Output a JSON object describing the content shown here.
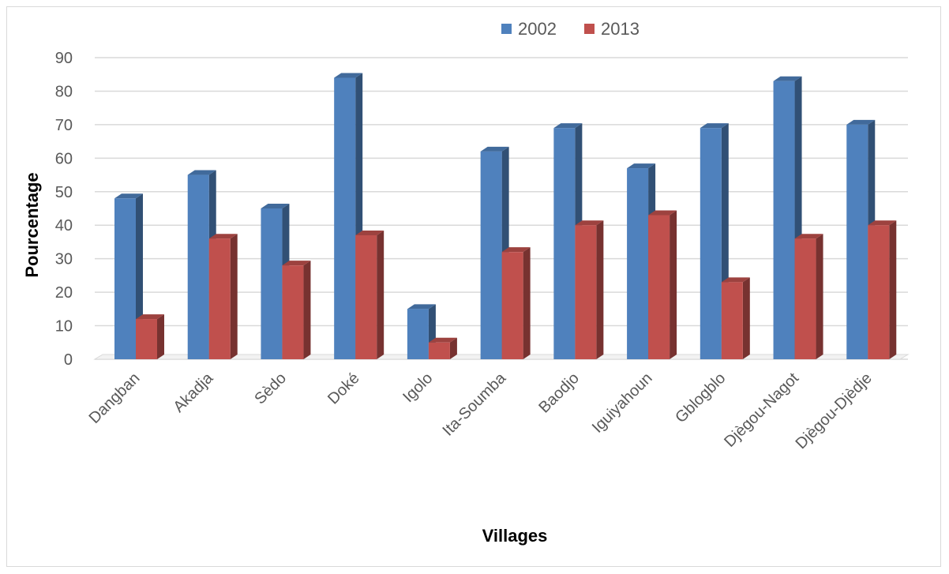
{
  "chart_data": {
    "type": "bar",
    "title": "",
    "xlabel": "Villages",
    "ylabel": "Pourcentage",
    "ylim": [
      0,
      90
    ],
    "yticks": [
      0,
      10,
      20,
      30,
      40,
      50,
      60,
      70,
      80,
      90
    ],
    "grid": true,
    "legend_position": "top-right",
    "categories": [
      "Dangban",
      "Akadja",
      "Sèdo",
      "Doké",
      "Igolo",
      "Ita-Soumba",
      "Baodjo",
      "Iguiyahoun",
      "Gblogblo",
      "Djègou-Nagot",
      "Djègou-Djèdje"
    ],
    "series": [
      {
        "name": "2002",
        "color": "#4F81BD",
        "values": [
          48,
          55,
          45,
          84,
          15,
          62,
          69,
          57,
          69,
          83,
          70
        ]
      },
      {
        "name": "2013",
        "color": "#C0504D",
        "values": [
          12,
          36,
          28,
          37,
          5,
          32,
          40,
          43,
          23,
          36,
          40
        ]
      }
    ]
  }
}
